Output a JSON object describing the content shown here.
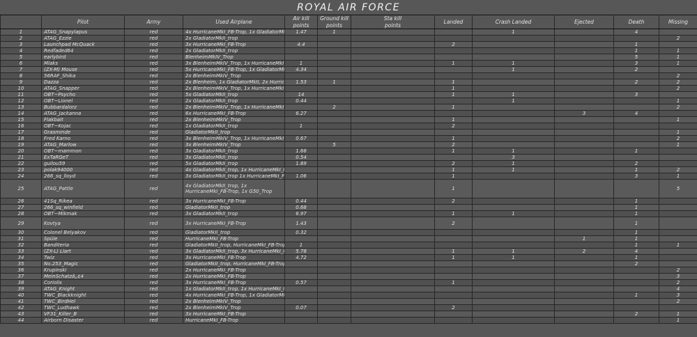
{
  "title": "ROYAL AIR FORCE",
  "colors": {
    "background": "#575757",
    "row_light": "#5a5a5a",
    "row_dark": "#505050",
    "grid_line": "#272727",
    "text": "#e3e3e3"
  },
  "table": {
    "columns": [
      {
        "key": "num",
        "label": ""
      },
      {
        "key": "pilot",
        "label": "Pilot"
      },
      {
        "key": "army",
        "label": "Army"
      },
      {
        "key": "airplane",
        "label": "Used Airplane"
      },
      {
        "key": "air",
        "label": "Air kill\npoints"
      },
      {
        "key": "ground",
        "label": "Ground kill\npoints"
      },
      {
        "key": "sta",
        "label": "Sta kill\npoints"
      },
      {
        "key": "landed",
        "label": "Landed"
      },
      {
        "key": "crash",
        "label": "Crash Landed"
      },
      {
        "key": "ejected",
        "label": "Ejected"
      },
      {
        "key": "death",
        "label": "Death"
      },
      {
        "key": "missing",
        "label": "Missing"
      }
    ],
    "rows": [
      {
        "num": "1",
        "pilot": "ATAG_Snapylapus",
        "army": "red",
        "airplane": "4x HurricaneMkI_FB-Trop, 1x GladiatorMkII_trop",
        "air": "1.47",
        "ground": "1",
        "crash": "1",
        "death": "4"
      },
      {
        "num": "2",
        "pilot": "ATAG_Ezzie",
        "army": "red",
        "airplane": "2x GladiatorMkII_trop",
        "missing": "2"
      },
      {
        "num": "3",
        "pilot": "Launchpad McQuack",
        "army": "red",
        "airplane": "3x HurricaneMkI_FB-Trop",
        "air": "4.4",
        "landed": "2",
        "death": "1"
      },
      {
        "num": "4",
        "pilot": "Redfaded64",
        "army": "red",
        "airplane": "2x GladiatorMkII_trop",
        "death": "1",
        "missing": "1"
      },
      {
        "num": "5",
        "pilot": "earlybird",
        "army": "red",
        "airplane": "BlenheimMkIV_Trop",
        "death": "5",
        "missing": "1"
      },
      {
        "num": "6",
        "pilot": "Mlaks",
        "army": "red",
        "airplane": "3x BlenheimMkIV_Trop, 1x HurricaneMkI_FB-Trop",
        "air": "1",
        "landed": "1",
        "crash": "1",
        "death": "3",
        "missing": "1"
      },
      {
        "num": "7",
        "pilot": "(ZX-M) Mouse",
        "army": "red",
        "airplane": "5x HurricaneMkI_FB-Trop, 1x GladiatorMkII_trop",
        "air": "4.34",
        "crash": "1",
        "death": "2"
      },
      {
        "num": "8",
        "pilot": "56RAF_Shika",
        "army": "red",
        "airplane": "2x BlenheimMkIV_Trop",
        "missing": "2"
      },
      {
        "num": "9",
        "pilot": "Dazza",
        "army": "red",
        "airplane": "2x Blenheim, 1x GladiatorMkII, 2x HurricaneMkI",
        "air": "1.53",
        "ground": "1",
        "landed": "1",
        "death": "2",
        "missing": "2"
      },
      {
        "num": "10",
        "pilot": "ATAG_Snapper",
        "army": "red",
        "airplane": "2x BlenheimMkIV_Trop, 1x HurricaneMkI_FB-Trop",
        "landed": "1",
        "missing": "2"
      },
      {
        "num": "11",
        "pilot": "OBT~Psycho",
        "army": "red",
        "airplane": "5x GladiatorMkII_trop",
        "air": "14",
        "landed": "1",
        "crash": "1",
        "death": "3"
      },
      {
        "num": "12",
        "pilot": "OBT~Lionel",
        "army": "red",
        "airplane": "2x GladiatorMkII_trop",
        "air": "0.44",
        "crash": "1",
        "missing": "1"
      },
      {
        "num": "13",
        "pilot": "Bubbardalorz",
        "army": "red",
        "airplane": "2x BlenheimMkIV_Trop, 1x HurricaneMkI_FB-Trop",
        "ground": "2",
        "landed": "1",
        "missing": "2"
      },
      {
        "num": "14",
        "pilot": "ATAG_Jackanna",
        "army": "red",
        "airplane": "6x HurricaneMkI_FB-Trop",
        "air": "6.27",
        "ejected": "3",
        "death": "4"
      },
      {
        "num": "15",
        "pilot": "Flakbait",
        "army": "red",
        "airplane": "2x BlenheimMkIV_Trop",
        "landed": "1",
        "missing": "1"
      },
      {
        "num": "16",
        "pilot": "OBT~Kojac",
        "army": "red",
        "airplane": "1x GladiatorMkII_trop",
        "air": "1",
        "landed": "2"
      },
      {
        "num": "17",
        "pilot": "Grasminde",
        "army": "red",
        "airplane": "GladiatorMkII_trop",
        "missing": "1"
      },
      {
        "num": "18",
        "pilot": "Fred Karno",
        "army": "red",
        "airplane": "3x BlenheimMkIV_Trop, 1x HurricaneMkI_FB-Trop",
        "air": "0.67",
        "landed": "1",
        "missing": "2"
      },
      {
        "num": "19",
        "pilot": "ATAG_Marlow",
        "army": "red",
        "airplane": "3x BlenheimMkIV_Trop",
        "ground": "5",
        "landed": "2",
        "missing": "1"
      },
      {
        "num": "20",
        "pilot": "OBT~mammon",
        "army": "red",
        "airplane": "3x GladiatorMkII_trop",
        "air": "1.66",
        "landed": "1",
        "crash": "1",
        "death": "1"
      },
      {
        "num": "21",
        "pilot": "ExTaRGeT",
        "army": "red",
        "airplane": "3x GladiatorMkII_trop",
        "air": "0.54",
        "crash": "3"
      },
      {
        "num": "22",
        "pilot": "guilou59",
        "army": "red",
        "airplane": "5x GladiatorMkII_trop",
        "air": "1.89",
        "landed": "2",
        "crash": "1",
        "death": "2"
      },
      {
        "num": "23",
        "pilot": "polak94000",
        "army": "red",
        "airplane": "4x GladiatorMkII_trop, 1x HurricaneMkI_FB-Trop",
        "landed": "1",
        "crash": "1",
        "death": "1",
        "missing": "2"
      },
      {
        "num": "24",
        "pilot": "266_sq_lloyd",
        "army": "red",
        "airplane": "3x GladiatorMkII_trop 1x HurricaneMkI_FB-Trop",
        "air": "1.06",
        "landed": "1",
        "death": "3",
        "missing": "1"
      },
      {
        "num": "25",
        "pilot": "ATAG_Pattle",
        "army": "red",
        "airplane": "4x GladiatorMkII_trop, 1x HurricaneMkI_FB-Trop, 1x G50_Trop",
        "landed": "1",
        "missing": "5"
      },
      {
        "num": "26",
        "pilot": "41Sq_Rikea",
        "army": "red",
        "airplane": "3x HurricaneMkI_FB-Trop",
        "air": "0.44",
        "landed": "2",
        "death": "1"
      },
      {
        "num": "27",
        "pilot": "266_sq_winfield",
        "army": "red",
        "airplane": "GladiatorMkII_trop",
        "air": "0.68",
        "death": "1"
      },
      {
        "num": "28",
        "pilot": "OBT~Mikmak",
        "army": "red",
        "airplane": "3x GladiatorMkII_trop",
        "air": "6.97",
        "landed": "1",
        "crash": "1",
        "death": "1"
      },
      {
        "num": "29",
        "pilot": "Kovtya",
        "army": "red",
        "airplane": "3x HurricaneMkI_FB-Trop",
        "air": "1.43",
        "landed": "2",
        "death": "1"
      },
      {
        "num": "30",
        "pilot": "Colonel Belyakov",
        "army": "red",
        "airplane": "GladiatorMkII_trop",
        "air": "0.32",
        "death": "1"
      },
      {
        "num": "31",
        "pilot": "Spüle",
        "army": "red",
        "airplane": "HurricaneMkI_FB-Trop",
        "ejected": "1",
        "death": "1"
      },
      {
        "num": "32",
        "pilot": "Banditeria",
        "army": "red",
        "airplane": "GladiatorMkII_trop, HurricaneMkI_FB-Trop",
        "air": "1",
        "death": "1",
        "missing": "1"
      },
      {
        "num": "33",
        "pilot": "(ZX-L) Llart",
        "army": "red",
        "airplane": "3x GladiatorMkII_trop, 3x HurricaneMkI_FB-Trop",
        "air": "5.78",
        "landed": "1",
        "crash": "1",
        "ejected": "2",
        "death": "4"
      },
      {
        "num": "34",
        "pilot": "Twiz",
        "army": "red",
        "airplane": "3x HurricaneMkI_FB-Trop",
        "air": "4.72",
        "landed": "1",
        "crash": "1",
        "death": "1"
      },
      {
        "num": "35",
        "pilot": "No.253_Magic",
        "army": "red",
        "airplane": "GladiatorMkII_trop, HurricaneMkI_FB-Trop",
        "death": "2"
      },
      {
        "num": "36",
        "pilot": "Krupinski",
        "army": "red",
        "airplane": "2x HurricaneMkI_FB-Trop",
        "missing": "2"
      },
      {
        "num": "37",
        "pilot": "MeinSchatzâ„¢4",
        "army": "red",
        "airplane": "2x HurricaneMkI_FB-Trop",
        "missing": "3"
      },
      {
        "num": "38",
        "pilot": "Coriolis",
        "army": "red",
        "airplane": "3x HurricaneMkI_FB-Trop",
        "air": "0.57",
        "landed": "1",
        "missing": "2"
      },
      {
        "num": "39",
        "pilot": "ATAG_Knight",
        "army": "red",
        "airplane": "1x GladiatorMkII_trop, 1x HurricaneMkI_FB-Trop",
        "missing": "4"
      },
      {
        "num": "40",
        "pilot": "TWC_Blackknight",
        "army": "red",
        "airplane": "4x HurricaneMkI_FB-Trop, 1x GladiatorMkII_trop",
        "death": "1",
        "missing": "3"
      },
      {
        "num": "41",
        "pilot": "TWC_BirdHel",
        "army": "red",
        "airplane": "2x BlenheimMkIV_Trop",
        "missing": "2"
      },
      {
        "num": "42",
        "pilot": "TWC_Ludhawk",
        "army": "red",
        "airplane": "2x BlenheimMkIV_Trop",
        "air": "0.07",
        "landed": "2"
      },
      {
        "num": "43",
        "pilot": "VF31_Killer_B",
        "army": "red",
        "airplane": "3x HurricaneMkI_FB-Trop",
        "death": "2",
        "missing": "1"
      },
      {
        "num": "44",
        "pilot": "Airborn Disaster",
        "army": "red",
        "airplane": "HurricaneMkI_FB-Trop",
        "missing": "1"
      }
    ]
  }
}
